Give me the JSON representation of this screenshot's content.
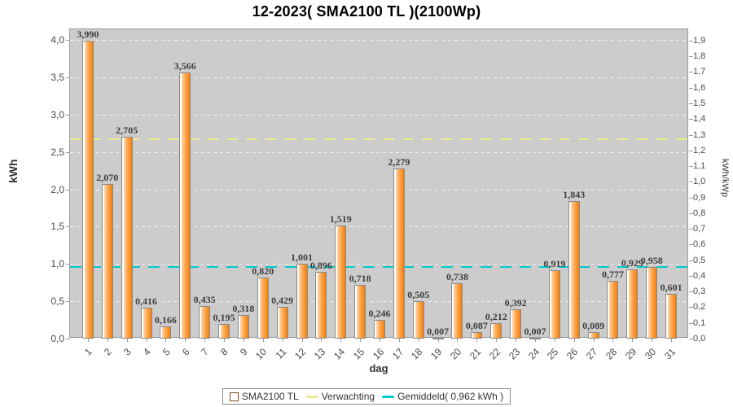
{
  "title": "12-2023( SMA2100 TL )(2100Wp)",
  "chart_data": {
    "type": "bar",
    "title": "12-2023( SMA2100 TL )(2100Wp)",
    "xlabel": "dag",
    "ylabel_left": "kWh",
    "ylabel_right": "kWh/kWp",
    "ylim_left": [
      0.0,
      4.0
    ],
    "ylim_right": [
      0.0,
      1.9
    ],
    "y_tick_step_left": 0.5,
    "y_tick_step_right": 0.1,
    "right_axis_scale_kwp": 2.1,
    "grid": true,
    "decimal_separator": ",",
    "categories": [
      1,
      2,
      3,
      4,
      5,
      6,
      7,
      8,
      9,
      10,
      11,
      12,
      13,
      14,
      15,
      16,
      17,
      18,
      19,
      20,
      21,
      22,
      23,
      24,
      25,
      26,
      27,
      28,
      29,
      30,
      31
    ],
    "series": [
      {
        "name": "SMA2100 TL",
        "values": [
          3.99,
          2.07,
          2.705,
          0.416,
          0.166,
          3.566,
          0.435,
          0.195,
          0.318,
          0.82,
          0.429,
          1.001,
          0.896,
          1.519,
          0.718,
          0.246,
          2.279,
          0.505,
          0.007,
          0.738,
          0.087,
          0.212,
          0.392,
          0.007,
          0.919,
          1.843,
          0.089,
          0.777,
          0.929,
          0.958,
          0.601
        ]
      }
    ],
    "reference_lines": [
      {
        "name": "Verwachting",
        "value": 2.67,
        "color": "#ecec8e"
      },
      {
        "name": "Gemiddeld",
        "value": 0.962,
        "color": "#00cccc"
      }
    ],
    "legend": {
      "position": "bottom",
      "entries": [
        {
          "label": "SMA2100 TL",
          "swatch": "bar",
          "color": "#f08048"
        },
        {
          "label": "Verwachting",
          "swatch": "line",
          "color": "#ecec8e"
        },
        {
          "label": "Gemiddeld( 0,962 kWh )",
          "swatch": "line",
          "color": "#00cccc"
        }
      ]
    },
    "colors": {
      "bar_fill_light": "#ffd9ae",
      "bar_fill_dark": "#f57d05",
      "bar_border": "#8a8a8a",
      "plot_background": "#cccccc",
      "gridline": "#f2f2f2"
    }
  }
}
